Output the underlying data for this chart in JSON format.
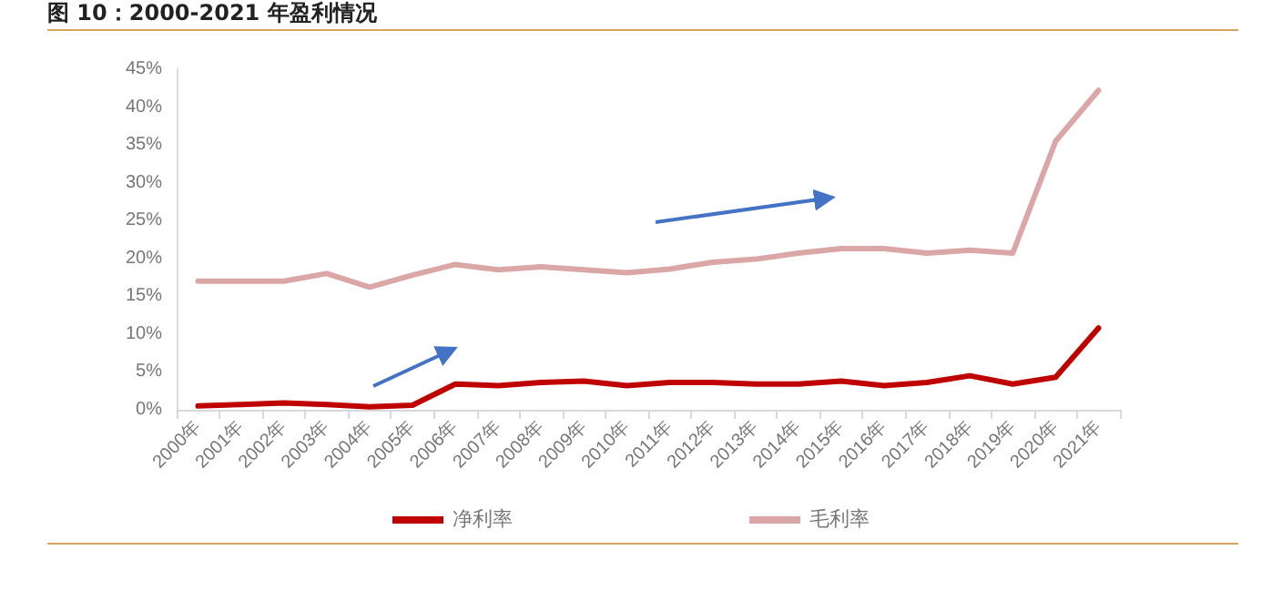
{
  "chart_data": {
    "type": "line",
    "title": "图 10：2000-2021 年盈利情况",
    "categories": [
      "2000年",
      "2001年",
      "2002年",
      "2003年",
      "2004年",
      "2005年",
      "2006年",
      "2007年",
      "2008年",
      "2009年",
      "2010年",
      "2011年",
      "2012年",
      "2013年",
      "2014年",
      "2015年",
      "2016年",
      "2017年",
      "2018年",
      "2019年",
      "2020年",
      "2021年"
    ],
    "series": [
      {
        "name": "净利率",
        "color": "#c00000",
        "values": [
          0.5,
          0.7,
          0.9,
          0.7,
          0.4,
          0.6,
          3.4,
          3.2,
          3.6,
          3.8,
          3.2,
          3.6,
          3.6,
          3.4,
          3.4,
          3.8,
          3.2,
          3.6,
          4.5,
          3.4,
          4.3,
          10.8
        ]
      },
      {
        "name": "毛利率",
        "color": "#dba6a6",
        "values": [
          17,
          17,
          17,
          18,
          16.2,
          17.8,
          19.2,
          18.5,
          18.9,
          18.5,
          18.1,
          18.6,
          19.5,
          19.9,
          20.7,
          21.3,
          21.3,
          20.7,
          21.1,
          20.7,
          35.5,
          42.2
        ]
      }
    ],
    "ylim": [
      0,
      45
    ],
    "yticks": [
      {
        "value": 0,
        "label": "0%"
      },
      {
        "value": 5,
        "label": "5%"
      },
      {
        "value": 10,
        "label": "10%"
      },
      {
        "value": 15,
        "label": "15%"
      },
      {
        "value": 20,
        "label": "20%"
      },
      {
        "value": 25,
        "label": "25%"
      },
      {
        "value": 30,
        "label": "30%"
      },
      {
        "value": 35,
        "label": "35%"
      },
      {
        "value": 40,
        "label": "40%"
      },
      {
        "value": 45,
        "label": "45%"
      }
    ],
    "grid": false,
    "legend": "bottom",
    "marker": "none",
    "line_style": "solid"
  }
}
